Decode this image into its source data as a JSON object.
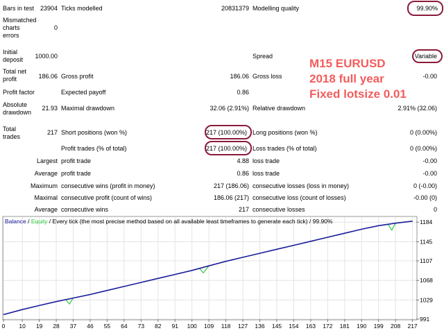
{
  "report": {
    "bars_label": "Bars in test",
    "bars_value": "23904",
    "ticks_label": "Ticks modelled",
    "ticks_value": "20831379",
    "mq_label": "Modelling quality",
    "mq_value": "99.90%",
    "mismatch_label": "Mismatched charts errors",
    "mismatch_value": "0",
    "init_label": "Initial deposit",
    "init_value": "1000.00",
    "spread_label": "Spread",
    "spread_value": "Variable",
    "netprofit_label": "Total net profit",
    "netprofit_value": "186.06",
    "grossprofit_label": "Gross profit",
    "grossprofit_value": "186.06",
    "grossloss_label": "Gross loss",
    "grossloss_value": "-0.00",
    "pf_label": "Profit factor",
    "pf_value": "",
    "ep_label": "Expected payoff",
    "ep_value": "0.86",
    "absdd_label": "Absolute drawdown",
    "absdd_value": "21.93",
    "maxdd_label": "Maximal drawdown",
    "maxdd_value": "32.06 (2.91%)",
    "reldd_label": "Relative drawdown",
    "reldd_value": "2.91% (32.06)",
    "totaltrades_label": "Total trades",
    "totaltrades_value": "217",
    "short_label": "Short positions (won %)",
    "short_value": "217 (100.00%)",
    "long_label": "Long positions (won %)",
    "long_value": "0 (0.00%)",
    "profittrades_label": "Profit trades (% of total)",
    "profittrades_value": "217 (100.00%)",
    "losstrades_label": "Loss trades (% of total)",
    "losstrades_value": "0 (0.00%)",
    "largest_label": "Largest",
    "largest_pt_label": "profit trade",
    "largest_pt_value": "4.88",
    "largest_lt_label": "loss trade",
    "largest_lt_value": "-0.00",
    "average_label": "Average",
    "average_pt_label": "profit trade",
    "average_pt_value": "0.86",
    "average_lt_label": "loss trade",
    "average_lt_value": "-0.00",
    "maximum_label": "Maximum",
    "max_cw_label": "consecutive wins (profit in money)",
    "max_cw_value": "217 (186.06)",
    "max_cl_label": "consecutive losses (loss in money)",
    "max_cl_value": "0 (-0.00)",
    "maximal_label": "Maximal",
    "maximal_cp_label": "consecutive profit (count of wins)",
    "maximal_cp_value": "186.06 (217)",
    "maximal_cl_label": "consecutive loss (count of losses)",
    "maximal_cl_value": "-0.00 (0)",
    "average2_label": "Average",
    "avg_cw_label": "consecutive wins",
    "avg_cw_value": "217",
    "avg_cl_label": "consecutive losses",
    "avg_cl_value": "0"
  },
  "annotation": {
    "line1": "M15 EURUSD",
    "line2": "2018 full year",
    "line3": "Fixed lotsize 0.01"
  },
  "colors": {
    "annotation": "#f25c5c",
    "highlight_oval": "#8b1a3a",
    "balance": "#1c1c9c",
    "equity": "#2ecc40"
  },
  "chart_legend": {
    "balance": "Balance",
    "sep1": " / ",
    "equity": "Equity",
    "rest": " / Every tick (the most precise method based on all available least timeframes to generate each tick) / 99.90%"
  },
  "chart_data": {
    "type": "line",
    "x_ticks": [
      "0",
      "10",
      "19",
      "28",
      "37",
      "46",
      "55",
      "64",
      "73",
      "82",
      "91",
      "100",
      "109",
      "118",
      "127",
      "136",
      "145",
      "154",
      "163",
      "172",
      "181",
      "190",
      "199",
      "208",
      "217"
    ],
    "y_ticks": [
      "991",
      "1029",
      "1068",
      "1107",
      "1145",
      "1184"
    ],
    "xlim": [
      0,
      219
    ],
    "ylim": [
      991,
      1194
    ],
    "series": [
      {
        "name": "Balance",
        "x": [
          0,
          10,
          19,
          28,
          37,
          46,
          55,
          64,
          73,
          82,
          91,
          100,
          109,
          118,
          127,
          136,
          145,
          154,
          163,
          172,
          181,
          190,
          199,
          208,
          217
        ],
        "values": [
          1000,
          1010,
          1018,
          1026,
          1033,
          1040,
          1048,
          1056,
          1064,
          1072,
          1080,
          1088,
          1097,
          1106,
          1114,
          1122,
          1130,
          1138,
          1146,
          1154,
          1162,
          1170,
          1177,
          1182,
          1186
        ]
      },
      {
        "name": "Equity",
        "x": [
          0,
          10,
          19,
          28,
          33,
          35,
          37,
          46,
          55,
          64,
          73,
          82,
          91,
          100,
          104,
          106,
          109,
          118,
          127,
          136,
          145,
          154,
          163,
          172,
          181,
          190,
          199,
          204,
          206,
          208,
          217
        ],
        "values": [
          1000,
          1010,
          1018,
          1026,
          1030,
          1021,
          1033,
          1040,
          1048,
          1056,
          1064,
          1072,
          1080,
          1088,
          1092,
          1083,
          1097,
          1106,
          1114,
          1122,
          1130,
          1138,
          1146,
          1154,
          1162,
          1170,
          1177,
          1180,
          1168,
          1182,
          1186
        ]
      }
    ]
  }
}
